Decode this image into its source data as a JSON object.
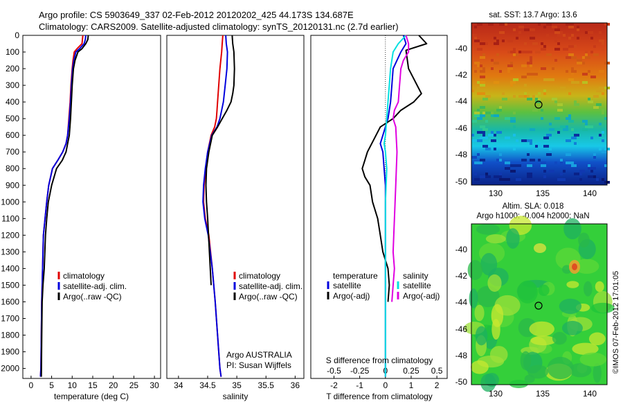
{
  "header": {
    "line1": "Argo profile: CS 5903649_337 02-Feb-2012 20120202_425 44.173S 134.687E",
    "line2": "Climatology: CARS2009. Satellite-adjusted climatology: synTS_20120131.nc (2.7d earlier)"
  },
  "side_label": "©IMOS 07-Feb-2012 17:01:05",
  "chart_data": [
    {
      "type": "line",
      "id": "temperature",
      "xlabel": "temperature (deg C)",
      "ylabel": "",
      "xlim": [
        -2,
        31.5
      ],
      "ylim": [
        0,
        2060
      ],
      "xticks": [
        0,
        5,
        10,
        15,
        20,
        25,
        30
      ],
      "yticks": [
        0,
        100,
        200,
        300,
        400,
        500,
        600,
        700,
        800,
        900,
        1000,
        1100,
        1200,
        1300,
        1400,
        1500,
        1600,
        1700,
        1800,
        1900,
        2000
      ],
      "legend": [
        "climatology",
        "satellite-adj. clim.",
        "Argo(..raw -QC)"
      ],
      "series": [
        {
          "name": "climatology",
          "color": "#e00000",
          "x": [
            12.6,
            12.5,
            12.4,
            11.2,
            10.5,
            10.2,
            10.0,
            9.7,
            9.5,
            9.2,
            8.9,
            8.5,
            7.7,
            6.5,
            5.2,
            4.3,
            3.8,
            3.4,
            3.0,
            2.8,
            2.6,
            2.5,
            2.4,
            2.3
          ],
          "y": [
            0,
            25,
            50,
            80,
            100,
            150,
            200,
            300,
            400,
            500,
            600,
            650,
            700,
            750,
            800,
            900,
            1000,
            1100,
            1200,
            1400,
            1600,
            1800,
            2000,
            2050
          ]
        },
        {
          "name": "satellite-adj. clim.",
          "color": "#0000dd",
          "x": [
            13.3,
            13.2,
            12.9,
            11.8,
            10.9,
            10.4,
            10.1,
            9.8,
            9.6,
            9.3,
            8.9,
            8.5,
            7.7,
            6.5,
            5.2,
            4.3,
            3.8,
            3.4,
            3.0,
            2.8,
            2.6,
            2.5,
            2.4,
            2.3
          ],
          "y": [
            0,
            25,
            50,
            80,
            100,
            150,
            200,
            300,
            400,
            500,
            600,
            650,
            700,
            750,
            800,
            900,
            1000,
            1100,
            1200,
            1400,
            1600,
            1800,
            2000,
            2050
          ]
        },
        {
          "name": "Argo(..raw -QC)",
          "color": "#000000",
          "x": [
            13.9,
            13.8,
            13.3,
            12.4,
            11.4,
            10.7,
            10.3,
            10.0,
            9.8,
            9.6,
            9.3,
            8.9,
            8.5,
            7.6,
            6.2,
            5.0,
            4.2,
            3.8,
            3.5,
            3.2,
            2.9,
            2.7,
            2.6,
            2.5
          ],
          "y": [
            0,
            25,
            50,
            80,
            100,
            150,
            200,
            300,
            400,
            500,
            600,
            650,
            700,
            750,
            800,
            900,
            1000,
            1100,
            1200,
            1400,
            1500,
            1600,
            1800,
            2050
          ]
        }
      ]
    },
    {
      "type": "line",
      "id": "salinity",
      "xlabel": "salinity",
      "ylabel": "",
      "xlim": [
        33.8,
        36.15
      ],
      "ylim": [
        0,
        2060
      ],
      "xticks": [
        34,
        34.5,
        35,
        35.5,
        36
      ],
      "legend": [
        "climatology",
        "satellite-adj. clim.",
        "Argo(..raw -QC)"
      ],
      "annotation": [
        "Argo AUSTRALIA",
        "PI: Susan Wijffels"
      ],
      "series": [
        {
          "name": "climatology",
          "color": "#e00000",
          "x": [
            34.76,
            34.75,
            34.74,
            34.71,
            34.69,
            34.67,
            34.66,
            34.65,
            34.62,
            34.56,
            34.5,
            34.47,
            34.44,
            34.43,
            34.46,
            34.52,
            34.58,
            34.63,
            34.67,
            34.71,
            34.73
          ],
          "y": [
            0,
            50,
            100,
            200,
            300,
            400,
            450,
            500,
            550,
            600,
            700,
            800,
            900,
            1000,
            1100,
            1200,
            1400,
            1600,
            1800,
            2000,
            2050
          ]
        },
        {
          "name": "satellite-adj. clim.",
          "color": "#0000dd",
          "x": [
            34.81,
            34.82,
            34.84,
            34.83,
            34.8,
            34.77,
            34.74,
            34.71,
            34.66,
            34.57,
            34.5,
            34.46,
            34.43,
            34.42,
            34.45,
            34.51,
            34.58,
            34.63,
            34.67,
            34.71,
            34.73
          ],
          "y": [
            0,
            50,
            100,
            200,
            300,
            400,
            450,
            500,
            550,
            600,
            700,
            800,
            900,
            1000,
            1100,
            1200,
            1400,
            1600,
            1800,
            2000,
            2050
          ]
        },
        {
          "name": "Argo(..raw -QC)",
          "color": "#000000",
          "x": [
            34.92,
            34.93,
            34.95,
            34.96,
            34.95,
            34.93,
            34.9,
            34.83,
            34.75,
            34.67,
            34.58,
            34.52,
            34.48,
            34.47,
            34.48,
            34.5,
            34.53,
            34.56
          ],
          "y": [
            0,
            50,
            100,
            200,
            300,
            350,
            400,
            450,
            500,
            550,
            600,
            700,
            800,
            900,
            1000,
            1100,
            1300,
            1500
          ]
        }
      ]
    },
    {
      "type": "line",
      "id": "difference",
      "xlabel": "T difference from climatology",
      "xlabel_top": "S difference from climatology",
      "xlim": [
        -2.9,
        2.4
      ],
      "ylim": [
        0,
        2060
      ],
      "xticks": [
        -2,
        -1,
        0,
        1,
        2
      ],
      "xticks_s": [
        "-0.5",
        "-0.25",
        "0",
        "0.25",
        "0.5"
      ],
      "legend_left_title": "temperature",
      "legend_right_title": "salinity",
      "legend_left": [
        "satellite",
        "Argo(-adj)"
      ],
      "legend_right": [
        "satellite",
        "Argo(-adj)"
      ],
      "series": [
        {
          "name": "T satellite",
          "color": "#0000dd",
          "x": [
            0.7,
            0.8,
            0.6,
            0.3,
            0.25,
            0.2,
            0.1,
            -0.1,
            -0.2,
            -0.1,
            -0.05,
            0.0,
            0.0,
            0.0,
            0.0,
            0.0,
            0.0
          ],
          "y": [
            0,
            50,
            100,
            200,
            300,
            400,
            500,
            600,
            650,
            700,
            800,
            900,
            1000,
            1200,
            1500,
            1800,
            2050
          ]
        },
        {
          "name": "T Argo(-adj)",
          "color": "#000000",
          "x": [
            1.3,
            1.6,
            0.8,
            0.9,
            1.4,
            1.1,
            0.6,
            0.3,
            -0.2,
            -0.7,
            -0.8,
            -0.9,
            -0.8,
            -0.6,
            -0.5,
            -0.3,
            -0.2,
            -0.1,
            0.1,
            0.15,
            0.1
          ],
          "y": [
            0,
            50,
            90,
            200,
            350,
            400,
            450,
            500,
            550,
            700,
            750,
            800,
            850,
            900,
            1000,
            1100,
            1200,
            1300,
            1400,
            1500,
            1600
          ]
        },
        {
          "name": "S satellite",
          "color": "#00e0e0",
          "x": [
            0.8,
            0.5,
            0.3,
            0.2,
            0.15,
            0.1,
            0.05,
            0.0,
            -0.05,
            0.0,
            0.05,
            0.0,
            0.0,
            0.0
          ],
          "y": [
            0,
            50,
            100,
            200,
            300,
            400,
            500,
            600,
            650,
            700,
            800,
            1000,
            1500,
            2050
          ]
        },
        {
          "name": "S Argo(-adj)",
          "color": "#e000e0",
          "x": [
            0.8,
            0.9,
            0.9,
            0.7,
            0.6,
            0.55,
            0.5,
            0.35,
            0.3,
            0.4,
            0.45,
            0.4,
            0.35,
            0.3,
            0.35,
            0.3,
            0.25
          ],
          "y": [
            0,
            50,
            100,
            150,
            200,
            300,
            400,
            450,
            500,
            550,
            700,
            900,
            1100,
            1300,
            1400,
            1500,
            1600
          ]
        }
      ]
    }
  ],
  "maps": [
    {
      "id": "sst-map",
      "title": "sat. SST: 13.7  Argo: 13.6",
      "xticks": [
        "130",
        "135",
        "140"
      ],
      "yticks": [
        "-40",
        "-42",
        "-44",
        "-46",
        "-48",
        "-50"
      ],
      "colors": {
        "warm": "#c43c1c",
        "cold": "#0a2a90"
      }
    },
    {
      "id": "sla-map",
      "title_line1": "Altim. SLA: 0.018",
      "title_line2": "Argo h1000: -0.004  h2000: NaN",
      "xticks": [
        "130",
        "135",
        "140"
      ],
      "yticks": [
        "-40",
        "-42",
        "-44",
        "-46",
        "-48",
        "-50"
      ],
      "colors": {
        "base": "#2fd02f",
        "light": "#b8e830"
      }
    }
  ]
}
